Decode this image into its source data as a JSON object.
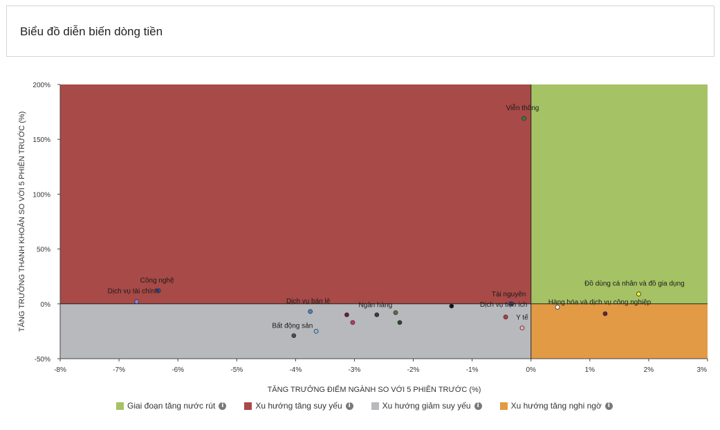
{
  "header": {
    "title": "Biểu đồ diễn biến dòng tiền"
  },
  "chart_data": {
    "type": "scatter",
    "title": "Biểu đồ diễn biến dòng tiền",
    "xlabel": "TĂNG TRƯỞNG ĐIỂM NGÀNH SO VỚI 5 PHIÊN TRƯỚC (%)",
    "ylabel": "TĂNG TRƯỞNG THANH KHOẢN SO VỚI 5 PHIÊN TRƯỚC (%)",
    "xlim": [
      -8,
      3
    ],
    "ylim": [
      -50,
      200
    ],
    "x_ticks": [
      -8,
      -7,
      -6,
      -5,
      -4,
      -3,
      -2,
      -1,
      0,
      1,
      2,
      3
    ],
    "x_tick_labels": [
      "-8%",
      "-7%",
      "-6%",
      "-5%",
      "-4%",
      "-3%",
      "-2%",
      "-1%",
      "0%",
      "1%",
      "2%",
      "3%"
    ],
    "y_ticks": [
      -50,
      0,
      50,
      100,
      150,
      200
    ],
    "y_tick_labels": [
      "-50%",
      "0%",
      "50%",
      "100%",
      "150%",
      "200%"
    ],
    "quadrants": [
      {
        "name": "Giai đoạn tăng nước rút",
        "x": [
          0,
          3
        ],
        "y": [
          0,
          200
        ],
        "color": "#a5c264"
      },
      {
        "name": "Xu hướng tăng suy yếu",
        "x": [
          -8,
          0
        ],
        "y": [
          0,
          200
        ],
        "color": "#a84a47"
      },
      {
        "name": "Xu hướng giảm suy yếu",
        "x": [
          -8,
          0
        ],
        "y": [
          -50,
          0
        ],
        "color": "#b8b9bc"
      },
      {
        "name": "Xu hướng tăng nghi ngờ",
        "x": [
          0,
          3
        ],
        "y": [
          -50,
          0
        ],
        "color": "#e39a45"
      }
    ],
    "legend_position": "bottom",
    "points": [
      {
        "x": -0.12,
        "y": 169,
        "label": "Viễn thông",
        "color": "#3a7a3a"
      },
      {
        "x": -6.33,
        "y": 12,
        "label": "Công nghệ",
        "color": "#2c4fa8"
      },
      {
        "x": -6.7,
        "y": 2,
        "label": "Dịch vụ tài chính",
        "color": "#8f7ee0"
      },
      {
        "x": -3.75,
        "y": -7,
        "label": "Dịch vụ bán lẻ",
        "color": "#4f87c2"
      },
      {
        "x": -4.03,
        "y": -29,
        "label": "Bất động sản",
        "color": "#4d4d4d"
      },
      {
        "x": -3.65,
        "y": -25,
        "label": "",
        "color": "#86bde8"
      },
      {
        "x": -3.13,
        "y": -10,
        "label": "",
        "color": "#6b1f2a"
      },
      {
        "x": -3.03,
        "y": -17,
        "label": "",
        "color": "#c8336b"
      },
      {
        "x": -2.62,
        "y": -10,
        "label": "Ngân hàng",
        "color": "#3a3a3a"
      },
      {
        "x": -2.3,
        "y": -8,
        "label": "",
        "color": "#5e6e3a"
      },
      {
        "x": -2.23,
        "y": -17,
        "label": "",
        "color": "#264a26"
      },
      {
        "x": -1.35,
        "y": -2,
        "label": "",
        "color": "#111111"
      },
      {
        "x": -0.33,
        "y": 0,
        "label": "Tài nguyên",
        "color": "#2f3ea0"
      },
      {
        "x": -0.43,
        "y": -12,
        "label": "Dịch vụ tiện ích",
        "color": "#c23b3b"
      },
      {
        "x": -0.15,
        "y": -22,
        "label": "Y tế",
        "color": "#f2a7a7"
      },
      {
        "x": 0.45,
        "y": -3,
        "label": "Hàng hóa và dịch vụ công nghiệp",
        "color": "#ffffff"
      },
      {
        "x": 1.26,
        "y": -9,
        "label": "",
        "color": "#6b1f3a"
      },
      {
        "x": 1.83,
        "y": 9,
        "label": "Đồ dùng cá nhân và đồ gia dụng",
        "color": "#f5f03a"
      }
    ]
  },
  "legend": {
    "items": [
      {
        "label": "Giai đoạn tăng nước rút",
        "color": "#a5c264"
      },
      {
        "label": "Xu hướng tăng suy yếu",
        "color": "#a84a47"
      },
      {
        "label": "Xu hướng giảm suy yếu",
        "color": "#b8b9bc"
      },
      {
        "label": "Xu hướng tăng nghi ngờ",
        "color": "#e39a45"
      }
    ],
    "info_glyph": "i"
  }
}
